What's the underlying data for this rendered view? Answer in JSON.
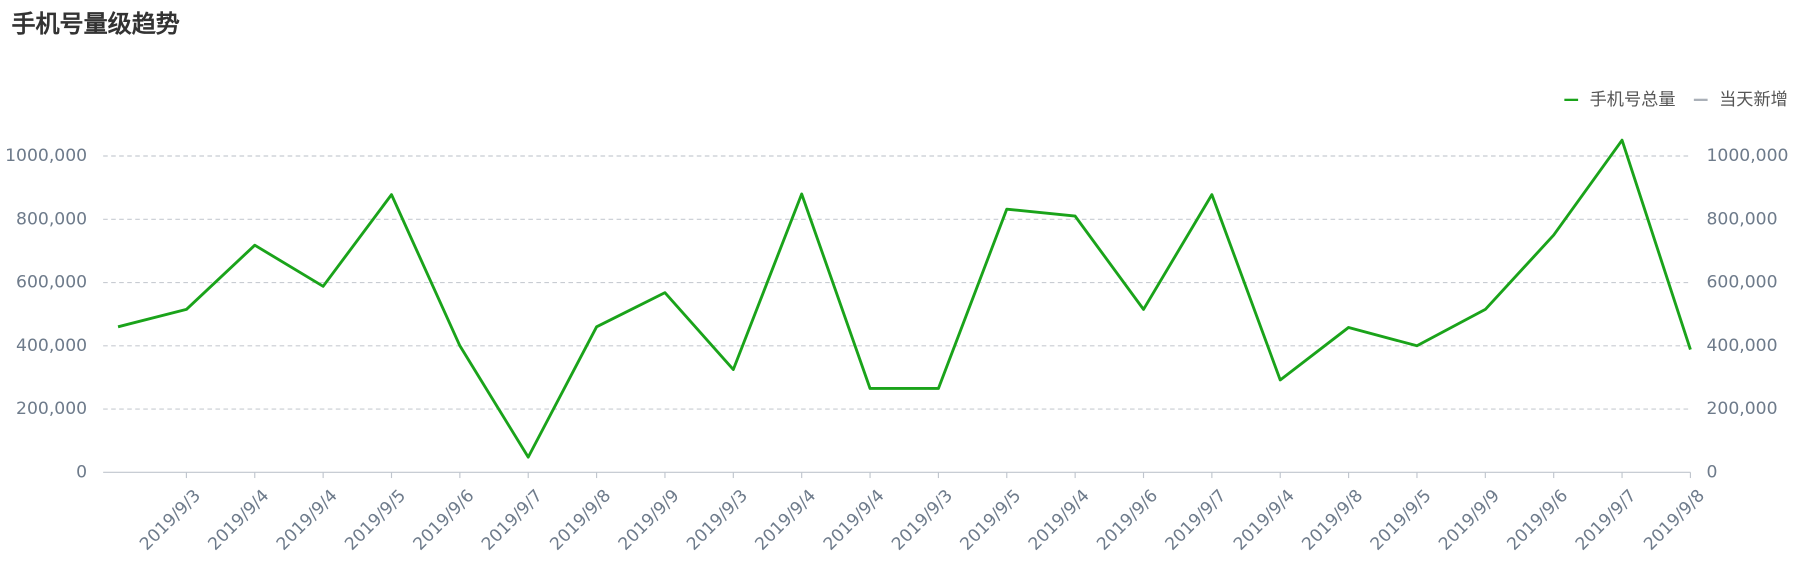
{
  "chart_data": {
    "type": "line",
    "title": "手机号量级趋势",
    "categories": [
      null,
      "2019/9/3",
      "2019/9/4",
      "2019/9/4",
      "2019/9/5",
      "2019/9/6",
      "2019/9/7",
      "2019/9/8",
      "2019/9/9",
      "2019/9/3",
      "2019/9/4",
      "2019/9/4",
      "2019/9/3",
      "2019/9/5",
      "2019/9/4",
      "2019/9/6",
      "2019/9/7",
      "2019/9/4",
      "2019/9/8",
      "2019/9/5",
      "2019/9/9",
      "2019/9/6",
      "2019/9/7",
      "2019/9/8"
    ],
    "series": [
      {
        "name": "手机号总量",
        "color": "#1aa31a",
        "values": [
          460000,
          515000,
          718000,
          588000,
          878000,
          400000,
          48000,
          460000,
          568000,
          325000,
          880000,
          265000,
          265000,
          832000,
          810000,
          515000,
          878000,
          292000,
          458000,
          400000,
          515000,
          750000,
          1050000,
          388000
        ]
      },
      {
        "name": "当天新增",
        "color": "#aab0b8",
        "axis": "y2",
        "values": [
          null,
          null,
          null,
          null,
          null,
          null,
          null,
          null,
          null,
          null,
          null,
          null,
          null,
          null,
          null,
          null,
          null,
          null,
          null,
          null,
          null,
          null,
          null,
          null
        ]
      }
    ],
    "ylim": [
      0,
      1000000
    ],
    "yticks": [
      0,
      {
        "value": 200000,
        "label": "200,000"
      },
      {
        "value": 400000,
        "label": "400,000"
      },
      {
        "value": 600000,
        "label": "600,000"
      },
      {
        "value": 800000,
        "label": "800,000"
      },
      {
        "value": 1000000,
        "label": "1000,000"
      }
    ],
    "y2lim": [
      0,
      1000000
    ],
    "y2ticks": [
      0,
      {
        "value": 200000,
        "label": "200,000"
      },
      {
        "value": 400000,
        "label": "400,000"
      },
      {
        "value": 600000,
        "label": "600,000"
      },
      {
        "value": 800000,
        "label": "800,000"
      },
      {
        "value": 1000000,
        "label": "1000,000"
      }
    ],
    "grid": true,
    "legend": "top-right"
  }
}
